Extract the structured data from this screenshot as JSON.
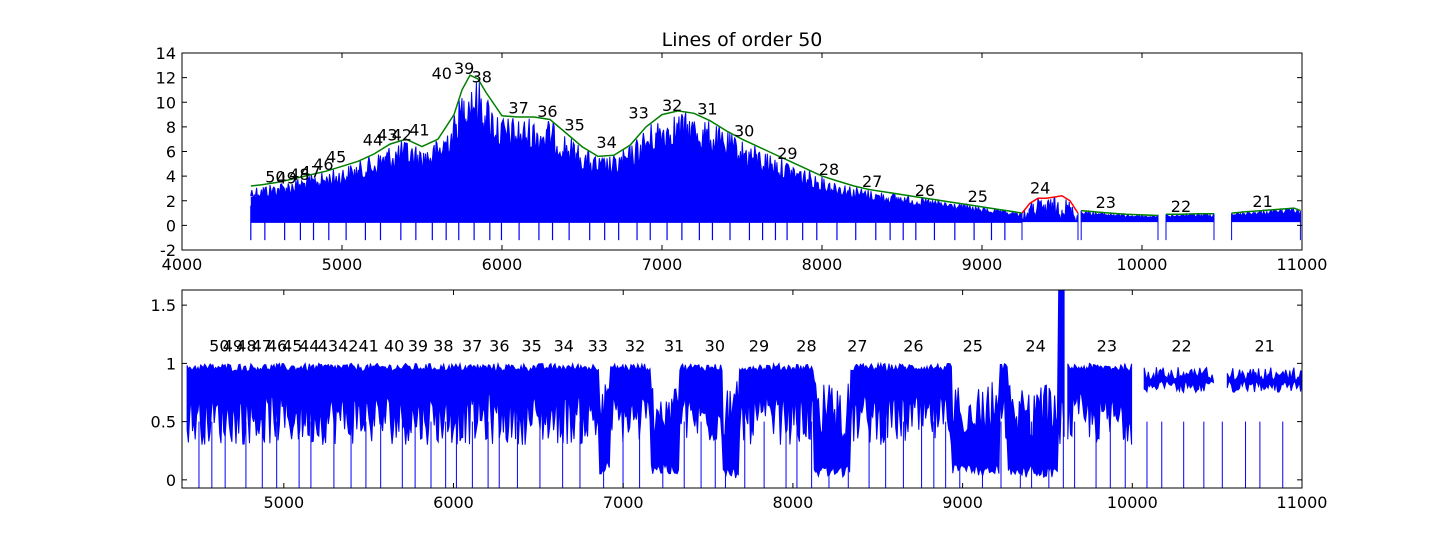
{
  "chart_data": [
    {
      "type": "line",
      "title": "Lines of order 50",
      "xlim": [
        4000,
        11000
      ],
      "ylim": [
        -2,
        14
      ],
      "xticks": [
        4000,
        5000,
        6000,
        7000,
        8000,
        9000,
        10000,
        11000
      ],
      "yticks": [
        -2,
        0,
        2,
        4,
        6,
        8,
        10,
        12,
        14
      ],
      "grid": false,
      "colors": {
        "spectrum": "#0000ff",
        "fit_red": "#ff0000",
        "fit_green": "#008000"
      },
      "envelope": {
        "x": [
          4430,
          4500,
          4600,
          4700,
          4800,
          4900,
          5000,
          5100,
          5200,
          5300,
          5400,
          5500,
          5600,
          5700,
          5750,
          5800,
          5850,
          5900,
          6000,
          6100,
          6200,
          6300,
          6400,
          6500,
          6600,
          6700,
          6800,
          6900,
          7000,
          7100,
          7200,
          7300,
          7400,
          7500,
          7600,
          7700,
          7800,
          7900,
          8000,
          8100,
          8200,
          8300,
          8400,
          8500,
          8600,
          8700,
          8800,
          8900,
          9000,
          9100,
          9200,
          9250
        ],
        "y": [
          3.2,
          3.3,
          3.5,
          3.8,
          4.1,
          4.4,
          4.8,
          5.2,
          5.8,
          6.6,
          7.0,
          6.4,
          7.0,
          9.0,
          11.0,
          12.2,
          11.9,
          10.8,
          8.9,
          8.8,
          8.8,
          8.6,
          7.5,
          6.4,
          5.6,
          5.7,
          6.5,
          8.0,
          9.0,
          9.3,
          9.1,
          8.5,
          7.7,
          7.0,
          6.4,
          5.8,
          5.2,
          4.6,
          4.0,
          3.6,
          3.2,
          2.9,
          2.7,
          2.5,
          2.3,
          2.1,
          1.9,
          1.7,
          1.5,
          1.3,
          1.1,
          1.0
        ]
      },
      "segments": [
        {
          "x": [
            9250,
            9300,
            9350,
            9400,
            9450,
            9500,
            9550,
            9600
          ],
          "y": [
            1.0,
            1.8,
            2.2,
            2.2,
            2.3,
            2.4,
            2.0,
            1.0
          ]
        },
        {
          "x": [
            9620,
            9700,
            9800,
            9900,
            10000,
            10100
          ],
          "y": [
            1.2,
            1.1,
            1.0,
            0.9,
            0.85,
            0.8
          ]
        },
        {
          "x": [
            10150,
            10250,
            10350,
            10450
          ],
          "y": [
            0.9,
            0.9,
            0.95,
            0.95
          ]
        },
        {
          "x": [
            10560,
            10650,
            10750,
            10850,
            10950,
            10990
          ],
          "y": [
            1.0,
            1.1,
            1.2,
            1.3,
            1.4,
            1.2
          ]
        }
      ],
      "annotations": [
        {
          "text": "50",
          "x": 4520,
          "y": 3.5
        },
        {
          "text": "49",
          "x": 4590,
          "y": 3.4
        },
        {
          "text": "48",
          "x": 4670,
          "y": 3.7
        },
        {
          "text": "47",
          "x": 4740,
          "y": 3.9
        },
        {
          "text": "46",
          "x": 4820,
          "y": 4.5
        },
        {
          "text": "45",
          "x": 4900,
          "y": 5.1
        },
        {
          "text": "44",
          "x": 5130,
          "y": 6.5
        },
        {
          "text": "43",
          "x": 5220,
          "y": 6.9
        },
        {
          "text": "42",
          "x": 5310,
          "y": 6.9
        },
        {
          "text": "41",
          "x": 5420,
          "y": 7.3
        },
        {
          "text": "40",
          "x": 5560,
          "y": 11.9
        },
        {
          "text": "39",
          "x": 5700,
          "y": 12.3
        },
        {
          "text": "38",
          "x": 5810,
          "y": 11.6
        },
        {
          "text": "37",
          "x": 6040,
          "y": 9.1
        },
        {
          "text": "36",
          "x": 6220,
          "y": 8.8
        },
        {
          "text": "35",
          "x": 6390,
          "y": 7.7
        },
        {
          "text": "34",
          "x": 6590,
          "y": 6.3
        },
        {
          "text": "33",
          "x": 6790,
          "y": 8.7
        },
        {
          "text": "32",
          "x": 7000,
          "y": 9.3
        },
        {
          "text": "31",
          "x": 7220,
          "y": 9.0
        },
        {
          "text": "30",
          "x": 7450,
          "y": 7.2
        },
        {
          "text": "29",
          "x": 7720,
          "y": 5.4
        },
        {
          "text": "28",
          "x": 7980,
          "y": 4.1
        },
        {
          "text": "27",
          "x": 8250,
          "y": 3.1
        },
        {
          "text": "26",
          "x": 8580,
          "y": 2.4
        },
        {
          "text": "25",
          "x": 8910,
          "y": 1.9
        },
        {
          "text": "24",
          "x": 9300,
          "y": 2.6
        },
        {
          "text": "23",
          "x": 9710,
          "y": 1.4
        },
        {
          "text": "22",
          "x": 10180,
          "y": 1.1
        },
        {
          "text": "21",
          "x": 10690,
          "y": 1.5
        }
      ]
    },
    {
      "type": "line",
      "title": "",
      "xlim": [
        4400,
        11000
      ],
      "ylim": [
        -0.07,
        1.63
      ],
      "xticks": [
        5000,
        6000,
        7000,
        8000,
        9000,
        10000,
        11000
      ],
      "yticks": [
        0.0,
        0.5,
        1.0,
        1.5
      ],
      "grid": false,
      "colors": {
        "spectrum": "#0000ff"
      },
      "labels_y": 1.1,
      "annotations": [
        {
          "text": "50",
          "x": 4560
        },
        {
          "text": "49",
          "x": 4640
        },
        {
          "text": "48",
          "x": 4720
        },
        {
          "text": "47",
          "x": 4810
        },
        {
          "text": "46",
          "x": 4900
        },
        {
          "text": "45",
          "x": 4990
        },
        {
          "text": "44",
          "x": 5090
        },
        {
          "text": "43",
          "x": 5200
        },
        {
          "text": "42",
          "x": 5320
        },
        {
          "text": "41",
          "x": 5440
        },
        {
          "text": "40",
          "x": 5590
        },
        {
          "text": "39",
          "x": 5730
        },
        {
          "text": "38",
          "x": 5880
        },
        {
          "text": "37",
          "x": 6050
        },
        {
          "text": "36",
          "x": 6210
        },
        {
          "text": "35",
          "x": 6400
        },
        {
          "text": "34",
          "x": 6590
        },
        {
          "text": "33",
          "x": 6790
        },
        {
          "text": "32",
          "x": 7010
        },
        {
          "text": "31",
          "x": 7240
        },
        {
          "text": "30",
          "x": 7480
        },
        {
          "text": "29",
          "x": 7740
        },
        {
          "text": "28",
          "x": 8020
        },
        {
          "text": "27",
          "x": 8320
        },
        {
          "text": "26",
          "x": 8650
        },
        {
          "text": "25",
          "x": 9000
        },
        {
          "text": "24",
          "x": 9370
        },
        {
          "text": "23",
          "x": 9790
        },
        {
          "text": "22",
          "x": 10230
        },
        {
          "text": "21",
          "x": 10720
        }
      ],
      "absorption_bands": [
        {
          "x0": 6860,
          "x1": 6920,
          "min": 0.05
        },
        {
          "x0": 7160,
          "x1": 7330,
          "min": 0.05
        },
        {
          "x0": 7590,
          "x1": 7680,
          "min": 0.0
        },
        {
          "x0": 8120,
          "x1": 8340,
          "min": 0.02
        },
        {
          "x0": 8940,
          "x1": 9220,
          "min": 0.03
        },
        {
          "x0": 9270,
          "x1": 9560,
          "min": 0.02
        }
      ],
      "emission_spike": {
        "x": 9600,
        "y": 1.63
      }
    }
  ]
}
